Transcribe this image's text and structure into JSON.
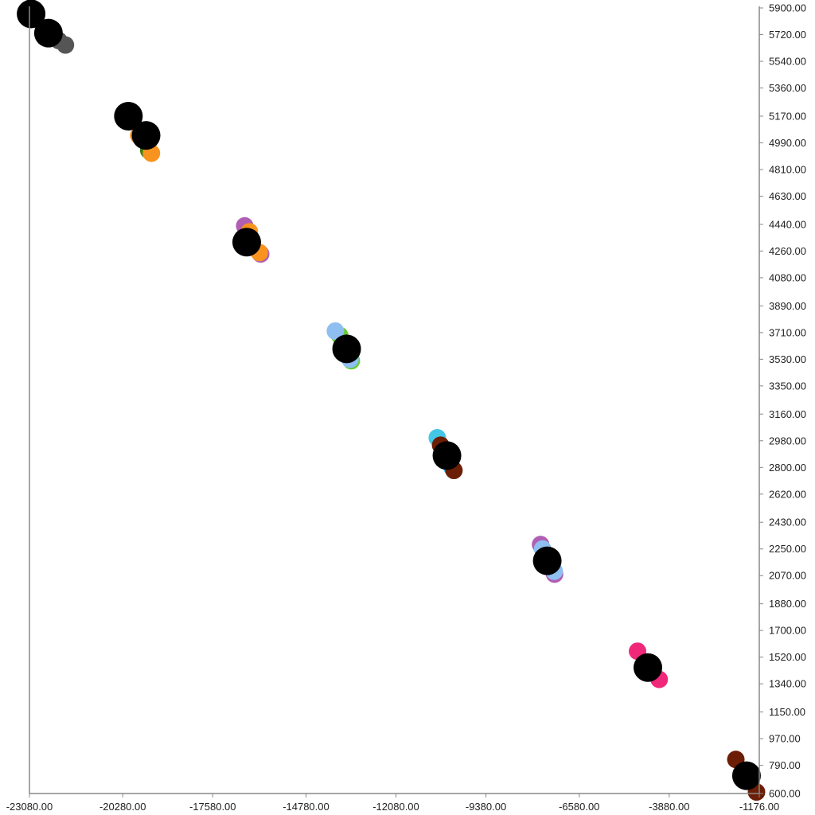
{
  "chart_data": {
    "type": "scatter",
    "title": "",
    "xlabel": "",
    "ylabel": "",
    "xlim": [
      -23080,
      -1176
    ],
    "ylim": [
      600,
      5900
    ],
    "grid": false,
    "legend": "none",
    "x_ticks": [
      -23080,
      -20280,
      -17580,
      -14780,
      -12080,
      -9380,
      -6580,
      -3880,
      -1176
    ],
    "x_tick_labels": [
      "-23080.00",
      "-20280.00",
      "-17580.00",
      "-14780.00",
      "-12080.00",
      "-9380.00",
      "-6580.00",
      "-3880.00",
      "-1176.00"
    ],
    "y_ticks": [
      600,
      790,
      970,
      1150,
      1340,
      1520,
      1700,
      1880,
      2070,
      2250,
      2430,
      2620,
      2800,
      2980,
      3160,
      3350,
      3530,
      3710,
      3890,
      4080,
      4260,
      4440,
      4630,
      4810,
      4990,
      5170,
      5360,
      5540,
      5720,
      5900
    ],
    "y_tick_labels": [
      "600.00",
      "790.00",
      "970.00",
      "1150.00",
      "1340.00",
      "1520.00",
      "1700.00",
      "1880.00",
      "2070.00",
      "2250.00",
      "2430.00",
      "2620.00",
      "2800.00",
      "2980.00",
      "3160.00",
      "3350.00",
      "3530.00",
      "3710.00",
      "3890.00",
      "4080.00",
      "4260.00",
      "4440.00",
      "4630.00",
      "4810.00",
      "4990.00",
      "5170.00",
      "5360.00",
      "5540.00",
      "5720.00",
      "5900.00"
    ],
    "series": [
      {
        "color": "#555555",
        "points": [
          [
            -22200,
            5680
          ],
          [
            -22000,
            5650
          ]
        ]
      },
      {
        "color": "#000000",
        "points": [
          [
            -23030,
            5860
          ],
          [
            -22510,
            5730
          ]
        ]
      },
      {
        "color": "#3a7d11",
        "points": [
          [
            -19500,
            4940
          ]
        ]
      },
      {
        "color": "#f7931e",
        "points": [
          [
            -19800,
            5040
          ],
          [
            -19420,
            4920
          ]
        ]
      },
      {
        "color": "#000000",
        "points": [
          [
            -20110,
            5170
          ],
          [
            -19580,
            5040
          ]
        ]
      },
      {
        "color": "#b05fb4",
        "points": [
          [
            -16620,
            4430
          ],
          [
            -16140,
            4240
          ]
        ]
      },
      {
        "color": "#f7931e",
        "points": [
          [
            -16480,
            4390
          ],
          [
            -16180,
            4250
          ]
        ]
      },
      {
        "color": "#000000",
        "points": [
          [
            -16560,
            4320
          ]
        ]
      },
      {
        "color": "#66cc33",
        "points": [
          [
            -13770,
            3690
          ],
          [
            -13420,
            3520
          ]
        ]
      },
      {
        "color": "#8fbff0",
        "points": [
          [
            -13900,
            3720
          ],
          [
            -13460,
            3530
          ]
        ]
      },
      {
        "color": "#000000",
        "points": [
          [
            -13560,
            3600
          ]
        ]
      },
      {
        "color": "#44c6e6",
        "points": [
          [
            -10840,
            3000
          ],
          [
            -10400,
            2800
          ]
        ]
      },
      {
        "color": "#6b1e05",
        "points": [
          [
            -10740,
            2950
          ],
          [
            -10340,
            2780
          ]
        ]
      },
      {
        "color": "#000000",
        "points": [
          [
            -10550,
            2880
          ]
        ]
      },
      {
        "color": "#b05fb4",
        "points": [
          [
            -7740,
            2280
          ],
          [
            -7320,
            2080
          ]
        ]
      },
      {
        "color": "#8fbff0",
        "points": [
          [
            -7680,
            2250
          ],
          [
            -7330,
            2100
          ]
        ]
      },
      {
        "color": "#000000",
        "points": [
          [
            -7540,
            2170
          ]
        ]
      },
      {
        "color": "#f0287a",
        "points": [
          [
            -4830,
            1560
          ],
          [
            -4500,
            1440
          ],
          [
            -4180,
            1370
          ]
        ]
      },
      {
        "color": "#000000",
        "points": [
          [
            -4520,
            1450
          ]
        ]
      },
      {
        "color": "#6b1e05",
        "points": [
          [
            -1880,
            830
          ],
          [
            -1260,
            610
          ]
        ]
      },
      {
        "color": "#000000",
        "points": [
          [
            -1560,
            720
          ]
        ]
      }
    ]
  }
}
